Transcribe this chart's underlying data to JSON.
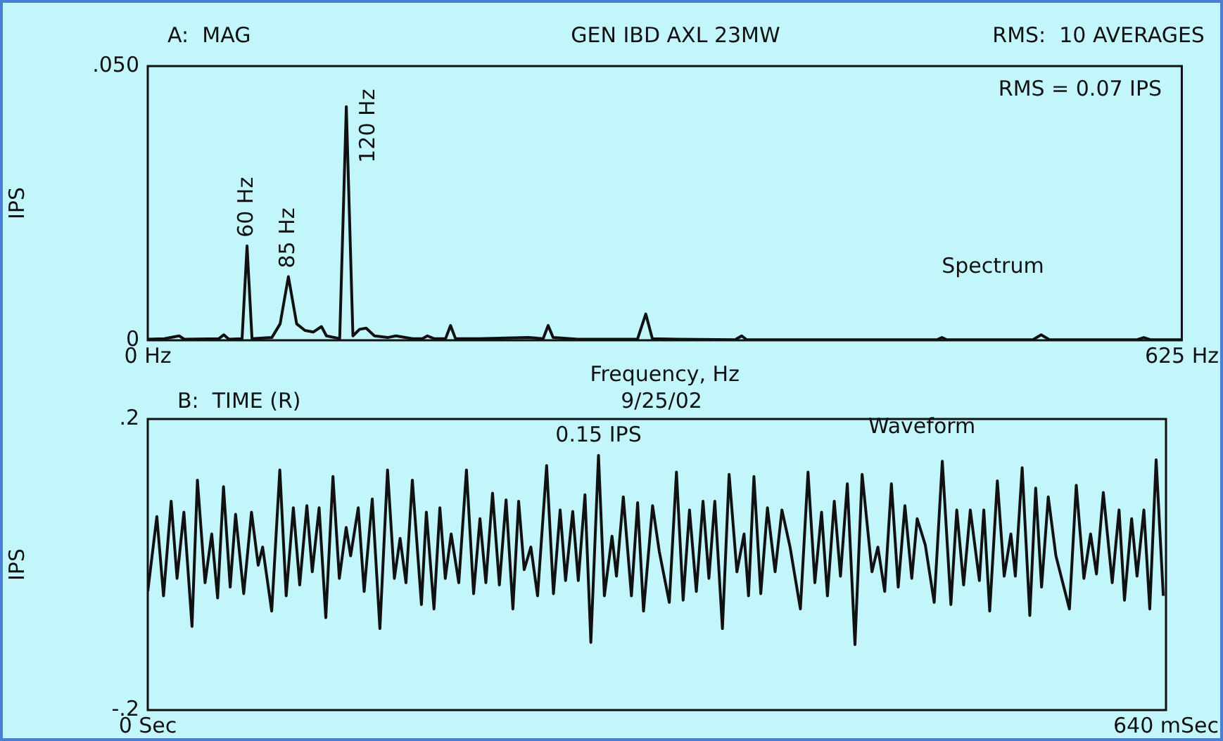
{
  "chart_data": [
    {
      "type": "line",
      "title": "GEN IBD AXL 23MW",
      "xlabel": "Frequency, Hz",
      "ylabel": "IPS",
      "xlim": [
        0,
        625
      ],
      "ylim": [
        0,
        0.05
      ],
      "xticks": [
        {
          "value": 0,
          "label": "0 Hz"
        },
        {
          "value": 625,
          "label": "625 Hz"
        }
      ],
      "yticks": [
        {
          "value": 0,
          "label": "0"
        },
        {
          "value": 0.05,
          "label": ".050"
        }
      ],
      "annotations": [
        "A:  MAG",
        "RMS:  10 AVERAGES",
        "RMS = 0.07 IPS",
        "Spectrum",
        {
          "text": "60 Hz",
          "x": 60,
          "y": 0.0172
        },
        {
          "text": "85 Hz",
          "x": 85,
          "y": 0.0116
        },
        {
          "text": "120 Hz",
          "x": 120,
          "y": 0.0426
        }
      ],
      "series": [
        {
          "color": "#111111",
          "x": [
            0,
            10,
            19,
            22,
            43,
            46,
            49,
            57,
            60,
            63,
            75,
            80,
            85,
            90,
            95,
            100,
            105,
            108,
            116,
            120,
            124,
            128,
            132,
            137,
            145,
            150,
            160,
            166,
            169,
            173,
            180,
            183,
            186,
            200,
            230,
            239,
            242,
            245,
            260,
            296,
            301,
            305,
            320,
            355,
            359,
            362,
            430,
            477,
            480,
            483,
            535,
            540,
            545,
            598,
            602,
            606,
            625
          ],
          "values": [
            0.0002,
            0.0003,
            0.0008,
            0.0002,
            0.0003,
            0.001,
            0.0002,
            0.0003,
            0.0172,
            0.0003,
            0.0005,
            0.003,
            0.0116,
            0.003,
            0.0018,
            0.0015,
            0.0025,
            0.0008,
            0.0003,
            0.0426,
            0.0008,
            0.002,
            0.0022,
            0.0008,
            0.0005,
            0.0008,
            0.0003,
            0.0003,
            0.0008,
            0.0003,
            0.0003,
            0.0027,
            0.0003,
            0.0003,
            0.0005,
            0.0003,
            0.0027,
            0.0005,
            0.0002,
            0.0002,
            0.0048,
            0.0003,
            0.0002,
            0.0001,
            0.0008,
            0.0001,
            0.0001,
            0.0001,
            0.0005,
            0.0001,
            0.0001,
            0.001,
            0.0001,
            0.0001,
            0.0005,
            0.0001,
            0.0001
          ]
        }
      ]
    },
    {
      "type": "line",
      "title": "9/25/02",
      "ylabel": "IPS",
      "xlim": [
        0,
        640
      ],
      "ylim": [
        -0.2,
        0.2
      ],
      "xticks": [
        {
          "value": 0,
          "label": "0 Sec"
        },
        {
          "value": 640,
          "label": "640 mSec"
        }
      ],
      "yticks": [
        {
          "value": -0.2,
          "label": "-.2"
        },
        {
          "value": 0.2,
          "label": ".2"
        }
      ],
      "annotations": [
        "B:  TIME (R)",
        "Waveform",
        {
          "text": "0.15 IPS",
          "x": 283.3,
          "y": 0.15
        }
      ],
      "series": [
        {
          "color": "#111111",
          "x": [
            0,
            5.7,
            9.9,
            14.7,
            18.4,
            22.7,
            27.8,
            31.2,
            36,
            40.2,
            43.9,
            47.6,
            51.8,
            55.2,
            60.3,
            65.2,
            69.4,
            72.2,
            77.9,
            83,
            87,
            91.5,
            95.5,
            100,
            103.4,
            107.7,
            111.9,
            116.4,
            120.4,
            124.7,
            127.5,
            132.3,
            136,
            141.1,
            145.9,
            150.7,
            155,
            158.6,
            162.3,
            166.3,
            172,
            175.1,
            179.9,
            183.6,
            187,
            190.7,
            195.5,
            200.3,
            204.8,
            208.8,
            212.5,
            216.7,
            221,
            225.2,
            229.5,
            233.1,
            236.6,
            240.8,
            245,
            250.7,
            255,
            259.2,
            262.6,
            267.1,
            270.6,
            274.8,
            278.5,
            283.3,
            287,
            291.8,
            294.6,
            298.9,
            304,
            307.9,
            311.6,
            317.3,
            321.5,
            327.8,
            332.3,
            336.5,
            340.5,
            344.8,
            349,
            352.7,
            356.4,
            361.2,
            365.4,
            370.3,
            374.8,
            377.6,
            381,
            385.3,
            389.5,
            394.3,
            398.6,
            403.7,
            410.2,
            415,
            419.3,
            423.5,
            427.2,
            431.5,
            435.4,
            439.7,
            444.5,
            449,
            455.2,
            458.9,
            463.2,
            467.4,
            471.7,
            475.9,
            480.2,
            483.6,
            488.7,
            494.3,
            499.4,
            504.8,
            508.5,
            512.8,
            517,
            522.7,
            525.5,
            529.2,
            534,
            538.3,
            542.5,
            545.3,
            549.6,
            554.4,
            558.1,
            561.8,
            566,
            570.8,
            579.3,
            583.6,
            588.4,
            592.6,
            596.3,
            600.6,
            606.2,
            610.5,
            613.9,
            618.4,
            621.8,
            626.1,
            629.8,
            633.8,
            638.3
          ],
          "values": [
            -0.037,
            0.066,
            -0.043,
            0.087,
            -0.019,
            0.072,
            -0.085,
            0.116,
            -0.025,
            0.042,
            -0.046,
            0.107,
            -0.031,
            0.069,
            -0.04,
            0.072,
            -0.001,
            0.024,
            -0.064,
            0.13,
            -0.043,
            0.078,
            -0.028,
            0.081,
            -0.01,
            0.078,
            -0.073,
            0.121,
            -0.019,
            0.051,
            0.012,
            0.078,
            -0.037,
            0.09,
            -0.088,
            0.13,
            -0.019,
            0.036,
            -0.025,
            0.116,
            -0.055,
            0.072,
            -0.061,
            0.078,
            -0.019,
            0.042,
            -0.025,
            0.13,
            -0.04,
            0.063,
            -0.025,
            0.098,
            -0.028,
            0.089,
            -0.061,
            0.087,
            -0.007,
            0.024,
            -0.043,
            0.136,
            -0.04,
            0.075,
            -0.022,
            0.073,
            -0.022,
            0.096,
            -0.107,
            0.15,
            -0.043,
            0.039,
            -0.016,
            0.093,
            -0.043,
            0.085,
            -0.064,
            0.081,
            0.018,
            -0.052,
            0.127,
            -0.049,
            0.075,
            -0.037,
            0.087,
            -0.019,
            0.087,
            -0.088,
            0.124,
            -0.01,
            0.042,
            -0.043,
            0.121,
            -0.04,
            0.078,
            -0.01,
            0.075,
            0.024,
            -0.061,
            0.127,
            -0.025,
            0.072,
            -0.043,
            0.087,
            -0.016,
            0.111,
            -0.11,
            0.124,
            -0.01,
            0.024,
            -0.037,
            0.111,
            -0.031,
            0.081,
            -0.019,
            0.063,
            0.027,
            -0.052,
            0.142,
            -0.055,
            0.075,
            -0.028,
            0.075,
            -0.022,
            0.075,
            -0.064,
            0.115,
            -0.016,
            0.042,
            -0.016,
            0.133,
            -0.07,
            0.105,
            -0.031,
            0.093,
            0.012,
            -0.061,
            0.109,
            -0.019,
            0.042,
            -0.013,
            0.099,
            -0.025,
            0.075,
            -0.049,
            0.063,
            -0.016,
            0.075,
            -0.061,
            0.144,
            -0.043
          ]
        }
      ]
    }
  ]
}
